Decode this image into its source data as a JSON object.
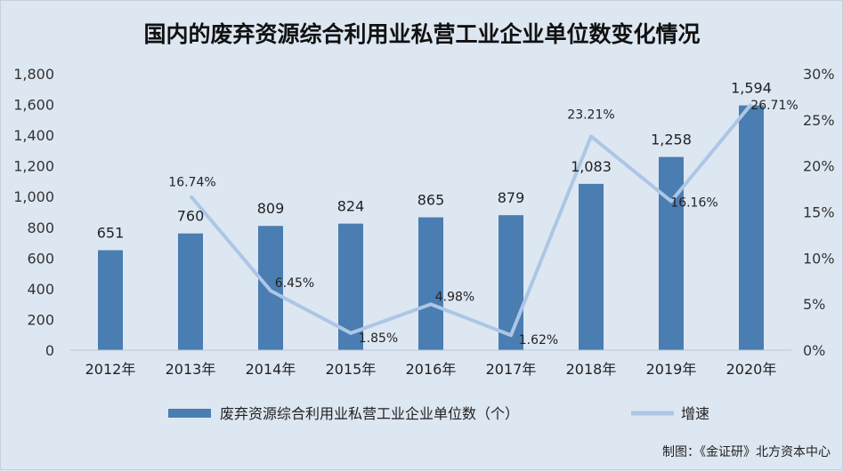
{
  "source": "制图：《金证研》北方资本中心",
  "colors": {
    "bar": "#4a7db1",
    "line": "#adc6e5",
    "background": "#dde7f2"
  },
  "chart_data": {
    "type": "bar",
    "title": "国内的废弃资源综合利用业私营工业企业单位数变化情况",
    "categories": [
      "2012年",
      "2013年",
      "2014年",
      "2015年",
      "2016年",
      "2017年",
      "2018年",
      "2019年",
      "2020年"
    ],
    "series": [
      {
        "name": "废弃资源综合利用业私营工业企业单位数（个）",
        "type": "bar",
        "axis": "left",
        "values": [
          651,
          760,
          809,
          824,
          865,
          879,
          1083,
          1258,
          1594
        ],
        "labels": [
          "651",
          "760",
          "809",
          "824",
          "865",
          "879",
          "1,083",
          "1,258",
          "1,594"
        ]
      },
      {
        "name": "增速",
        "type": "line",
        "axis": "right",
        "values": [
          null,
          16.74,
          6.45,
          1.85,
          4.98,
          1.62,
          23.21,
          16.16,
          26.71
        ],
        "labels": [
          "",
          "16.74%",
          "6.45%",
          "1.85%",
          "4.98%",
          "1.62%",
          "23.21%",
          "16.16%",
          "26.71%"
        ]
      }
    ],
    "y_left": {
      "min": 0,
      "max": 1800,
      "ticks": [
        "0",
        "200",
        "400",
        "600",
        "800",
        "1,000",
        "1,200",
        "1,400",
        "1,600",
        "1,800"
      ]
    },
    "y_right": {
      "min": 0,
      "max": 30,
      "ticks": [
        "0%",
        "5%",
        "10%",
        "15%",
        "20%",
        "25%",
        "30%"
      ]
    },
    "grid": false,
    "legend": "bottom"
  }
}
